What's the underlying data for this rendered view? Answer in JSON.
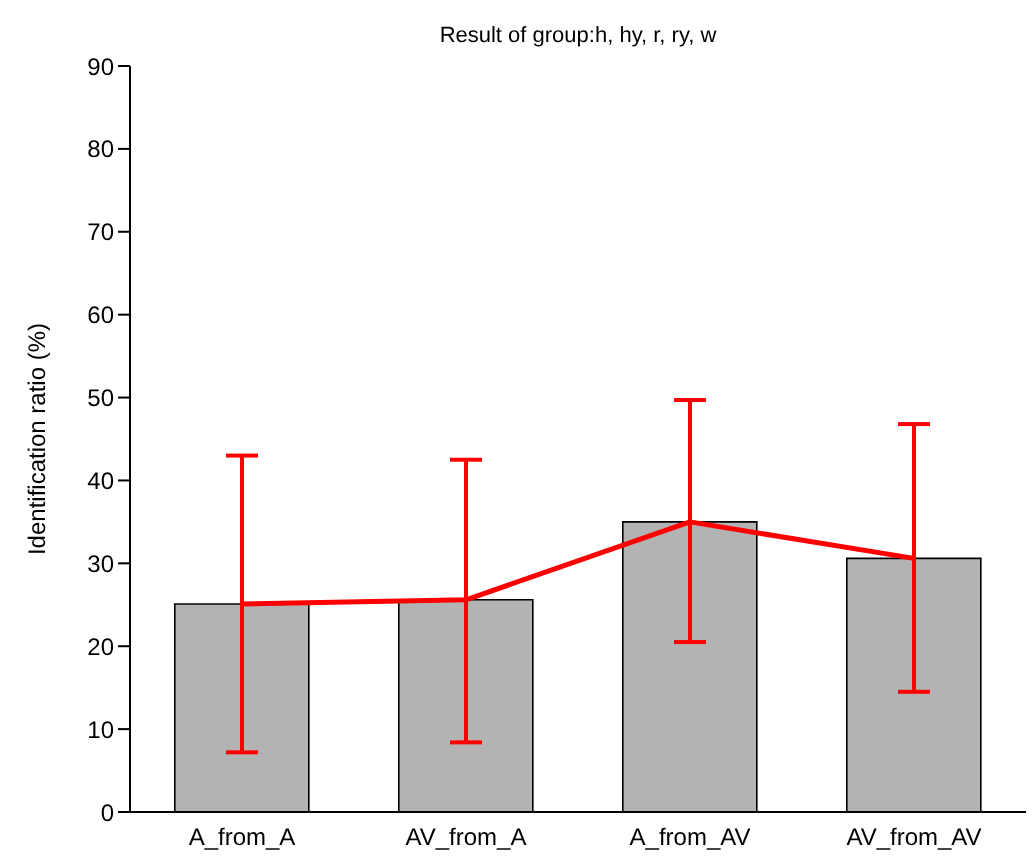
{
  "chart_data": {
    "type": "bar",
    "title": "Result of group:h, hy, r, ry, w",
    "ylabel": "Identification ratio (%)",
    "categories": [
      "A_from_A",
      "AV_from_A",
      "A_from_AV",
      "AV_from_AV"
    ],
    "series": [
      {
        "color": "#b3b3b3",
        "values": [
          25.1,
          25.6,
          35,
          30.6
        ]
      },
      {
        "type": "line",
        "color": "#ff0000",
        "values": [
          25.1,
          25.6,
          35,
          30.6
        ],
        "errors": [
          [
            7.2,
            43
          ],
          [
            8.4,
            42.5
          ],
          [
            20.5,
            49.7
          ],
          [
            14.5,
            46.8
          ]
        ]
      }
    ],
    "ylim": [
      0,
      90
    ],
    "yticks": [
      0,
      10,
      20,
      30,
      40,
      50,
      60,
      70,
      80,
      90
    ],
    "grid": false,
    "legend": false,
    "marker": "none"
  }
}
